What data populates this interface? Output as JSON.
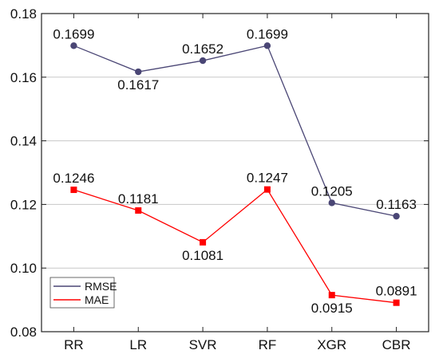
{
  "chart_data": {
    "type": "line",
    "categories": [
      "RR",
      "LR",
      "SVR",
      "RF",
      "XGR",
      "CBR"
    ],
    "ylim": [
      0.08,
      0.18
    ],
    "y_ticks": [
      0.08,
      0.1,
      0.12,
      0.14,
      0.16,
      0.18
    ],
    "y_tick_labels": [
      "0.08",
      "0.10",
      "0.12",
      "0.14",
      "0.16",
      "0.18"
    ],
    "grid": "horizontal",
    "legend_position": "bottom-left",
    "series": [
      {
        "name": "RMSE",
        "marker": "circle",
        "color": "#4a4675",
        "values": [
          0.1699,
          0.1617,
          0.1652,
          0.1699,
          0.1205,
          0.1163
        ],
        "labels": [
          "0.1699",
          "0.1617",
          "0.1652",
          "0.1699",
          "0.1205",
          "0.1163"
        ],
        "label_side": [
          "above",
          "below",
          "above",
          "above",
          "above",
          "above"
        ]
      },
      {
        "name": "MAE",
        "marker": "square",
        "color": "#ff0000",
        "values": [
          0.1246,
          0.1181,
          0.1081,
          0.1247,
          0.0915,
          0.0891
        ],
        "labels": [
          "0.1246",
          "0.1181",
          "0.1081",
          "0.1247",
          "0.0915",
          "0.0891"
        ],
        "label_side": [
          "above",
          "above",
          "below",
          "above",
          "below",
          "above"
        ]
      }
    ]
  }
}
